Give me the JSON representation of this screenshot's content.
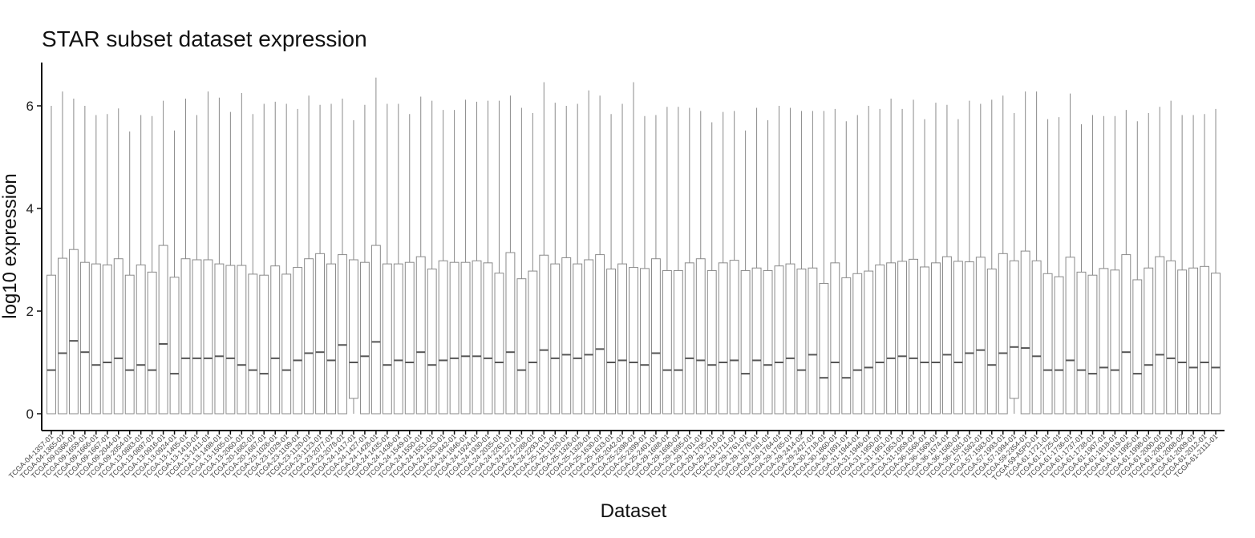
{
  "chart_data": {
    "type": "boxplot",
    "title": "STAR subset dataset expression",
    "xlabel": "Dataset",
    "ylabel": "log10 expression",
    "ylim": [
      0,
      6.8
    ],
    "yticks": [
      0,
      2,
      4,
      6
    ],
    "grid": false,
    "legend": "none",
    "colors": {
      "box_stroke": "#8a8a8a",
      "box_fill": "#ffffff",
      "axis": "#111111"
    },
    "categories": [
      "TCGA-04-1357-01",
      "TCGA-04-1365-01",
      "TCGA-09-0366-01",
      "TCGA-09-1659-01",
      "TCGA-09-1666-01",
      "TCGA-09-1667-01",
      "TCGA-09-2044-01",
      "TCGA-09-2054-01",
      "TCGA-13-0883-01",
      "TCGA-13-0897-01",
      "TCGA-13-0916-01",
      "TCGA-13-0924-01",
      "TCGA-13-1405-01",
      "TCGA-13-1410-01",
      "TCGA-13-1411-01",
      "TCGA-13-1498-01",
      "TCGA-13-1505-01",
      "TCGA-13-2060-01",
      "TCGA-20-1682-01",
      "TCGA-20-1687-01",
      "TCGA-23-1026-01",
      "TCGA-23-1029-01",
      "TCGA-23-1109-01",
      "TCGA-23-1120-01",
      "TCGA-23-1123-01",
      "TCGA-23-2077-01",
      "TCGA-23-2078-01",
      "TCGA-24-1417-01",
      "TCGA-24-1427-01",
      "TCGA-24-1428-01",
      "TCGA-24-1435-01",
      "TCGA-24-1436-01",
      "TCGA-24-1549-01",
      "TCGA-24-1550-01",
      "TCGA-24-1551-01",
      "TCGA-24-1553-01",
      "TCGA-24-1842-01",
      "TCGA-24-1846-01",
      "TCGA-24-1924-01",
      "TCGA-24-1930-01",
      "TCGA-24-2035-01",
      "TCGA-24-2261-01",
      "TCGA-24-2271-01",
      "TCGA-24-2288-01",
      "TCGA-24-2293-01",
      "TCGA-25-1313-01",
      "TCGA-25-1320-01",
      "TCGA-25-1326-01",
      "TCGA-25-1328-01",
      "TCGA-25-1630-01",
      "TCGA-25-1633-01",
      "TCGA-25-2042-01",
      "TCGA-25-2398-01",
      "TCGA-25-2399-01",
      "TCGA-25-2401-01",
      "TCGA-29-1688-01",
      "TCGA-29-1690-01",
      "TCGA-29-1695-01",
      "TCGA-29-1701-01",
      "TCGA-29-1705-01",
      "TCGA-29-1710-01",
      "TCGA-29-1711-01",
      "TCGA-29-1761-01",
      "TCGA-29-1776-01",
      "TCGA-29-1781-01",
      "TCGA-29-1784-01",
      "TCGA-29-1785-01",
      "TCGA-29-2414-02",
      "TCGA-29-2427-01",
      "TCGA-30-1718-01",
      "TCGA-30-1860-01",
      "TCGA-30-1891-01",
      "TCGA-31-1944-01",
      "TCGA-31-1946-01",
      "TCGA-31-1950-01",
      "TCGA-31-1951-01",
      "TCGA-31-1953-01",
      "TCGA-31-1959-01",
      "TCGA-36-1568-01",
      "TCGA-36-1569-01",
      "TCGA-36-1574-01",
      "TCGA-36-1580-01",
      "TCGA-36-1581-01",
      "TCGA-57-1582-01",
      "TCGA-57-1583-01",
      "TCGA-57-1993-01",
      "TCGA-57-1994-01",
      "TCGA-59-2354-01",
      "TCGA-59-A5PD-01",
      "TCGA-61-1721-01",
      "TCGA-61-1725-01",
      "TCGA-61-1736-01",
      "TCGA-61-1737-01",
      "TCGA-61-1738-01",
      "TCGA-61-1907-01",
      "TCGA-61-1918-01",
      "TCGA-61-1919-01",
      "TCGA-61-1995-01",
      "TCGA-61-1998-01",
      "TCGA-61-2000-01",
      "TCGA-61-2003-01",
      "TCGA-61-2008-02",
      "TCGA-61-2009-01",
      "TCGA-61-2012-01",
      "TCGA-61-2111-01"
    ],
    "series": [
      {
        "q1": [
          0,
          0,
          0,
          0,
          0,
          0,
          0,
          0,
          0,
          0,
          0,
          0,
          0,
          0,
          0,
          0,
          0,
          0,
          0,
          0,
          0,
          0,
          0,
          0,
          0,
          0,
          0,
          0.3,
          0,
          0,
          0,
          0,
          0,
          0,
          0,
          0,
          0,
          0,
          0,
          0,
          0,
          0,
          0,
          0,
          0,
          0,
          0,
          0,
          0,
          0,
          0,
          0,
          0,
          0,
          0,
          0,
          0,
          0,
          0,
          0,
          0,
          0,
          0,
          0,
          0,
          0,
          0,
          0,
          0,
          0,
          0,
          0,
          0,
          0,
          0,
          0,
          0,
          0,
          0,
          0,
          0,
          0,
          0,
          0,
          0,
          0,
          0.3,
          0,
          0,
          0,
          0,
          0,
          0,
          0,
          0,
          0,
          0,
          0,
          0,
          0,
          0,
          0,
          0,
          0,
          0
        ],
        "median": [
          0.85,
          1.18,
          1.42,
          1.2,
          0.95,
          1.0,
          1.08,
          0.85,
          0.95,
          0.85,
          1.36,
          0.78,
          1.08,
          1.08,
          1.08,
          1.12,
          1.08,
          0.95,
          0.85,
          0.78,
          1.08,
          0.85,
          1.04,
          1.18,
          1.2,
          1.04,
          1.34,
          1.0,
          1.12,
          1.4,
          0.95,
          1.04,
          1.0,
          1.2,
          0.95,
          1.04,
          1.08,
          1.12,
          1.12,
          1.08,
          1.0,
          1.2,
          0.85,
          1.0,
          1.24,
          1.08,
          1.15,
          1.08,
          1.15,
          1.26,
          1.0,
          1.04,
          1.0,
          0.95,
          1.18,
          0.85,
          0.85,
          1.08,
          1.04,
          0.95,
          1.0,
          1.04,
          0.78,
          1.04,
          0.95,
          1.0,
          1.08,
          0.85,
          1.15,
          0.7,
          1.0,
          0.7,
          0.85,
          0.9,
          1.0,
          1.08,
          1.12,
          1.08,
          1.0,
          1.0,
          1.15,
          1.0,
          1.18,
          1.24,
          0.95,
          1.18,
          1.3,
          1.28,
          1.12,
          0.85,
          0.85,
          1.04,
          0.85,
          0.78,
          0.9,
          0.85,
          1.2,
          0.78,
          0.95,
          1.15,
          1.08,
          1.0,
          0.9,
          1.0,
          0.9
        ],
        "q3": [
          2.7,
          3.03,
          3.2,
          2.95,
          2.92,
          2.9,
          3.02,
          2.7,
          2.9,
          2.76,
          3.28,
          2.66,
          3.02,
          3.0,
          3.0,
          2.92,
          2.89,
          2.89,
          2.72,
          2.7,
          2.88,
          2.72,
          2.85,
          3.02,
          3.12,
          2.92,
          3.1,
          3.0,
          2.95,
          3.28,
          2.92,
          2.92,
          2.95,
          3.06,
          2.82,
          2.98,
          2.95,
          2.95,
          2.98,
          2.94,
          2.74,
          3.14,
          2.63,
          2.78,
          3.09,
          2.92,
          3.04,
          2.92,
          3.0,
          3.1,
          2.82,
          2.92,
          2.85,
          2.83,
          3.02,
          2.79,
          2.79,
          2.94,
          3.02,
          2.79,
          2.94,
          2.99,
          2.79,
          2.84,
          2.79,
          2.88,
          2.92,
          2.82,
          2.84,
          2.54,
          2.94,
          2.65,
          2.73,
          2.78,
          2.9,
          2.94,
          2.97,
          3.01,
          2.86,
          2.94,
          3.06,
          2.97,
          2.96,
          3.05,
          2.82,
          3.12,
          2.98,
          3.17,
          2.98,
          2.73,
          2.67,
          3.05,
          2.76,
          2.7,
          2.83,
          2.8,
          3.1,
          2.61,
          2.84,
          3.06,
          2.98,
          2.8,
          2.84,
          2.87,
          2.74
        ],
        "max": [
          6.0,
          6.28,
          6.14,
          6.0,
          5.82,
          5.84,
          5.95,
          5.5,
          5.82,
          5.8,
          6.1,
          5.52,
          6.14,
          5.82,
          6.28,
          6.16,
          5.88,
          6.25,
          5.84,
          6.04,
          6.08,
          6.04,
          5.94,
          6.2,
          6.02,
          6.04,
          6.14,
          5.72,
          6.02,
          6.55,
          6.04,
          6.04,
          5.84,
          6.18,
          6.1,
          5.92,
          5.92,
          6.12,
          6.08,
          6.1,
          6.1,
          6.2,
          5.96,
          5.86,
          6.46,
          6.06,
          6.0,
          6.04,
          6.3,
          6.2,
          5.84,
          6.04,
          6.46,
          5.8,
          5.82,
          5.98,
          5.98,
          5.96,
          5.9,
          5.68,
          5.88,
          5.9,
          5.52,
          5.96,
          5.72,
          6.0,
          5.96,
          5.9,
          5.9,
          5.9,
          5.94,
          5.7,
          5.82,
          6.0,
          5.94,
          6.14,
          5.94,
          6.12,
          5.74,
          6.06,
          6.02,
          5.74,
          6.1,
          6.04,
          6.12,
          6.2,
          5.86,
          6.28,
          6.28,
          5.74,
          5.78,
          6.24,
          5.64,
          5.82,
          5.8,
          5.8,
          5.92,
          5.7,
          5.86,
          5.98,
          6.1,
          5.82,
          5.82,
          5.84,
          5.94
        ]
      }
    ]
  }
}
